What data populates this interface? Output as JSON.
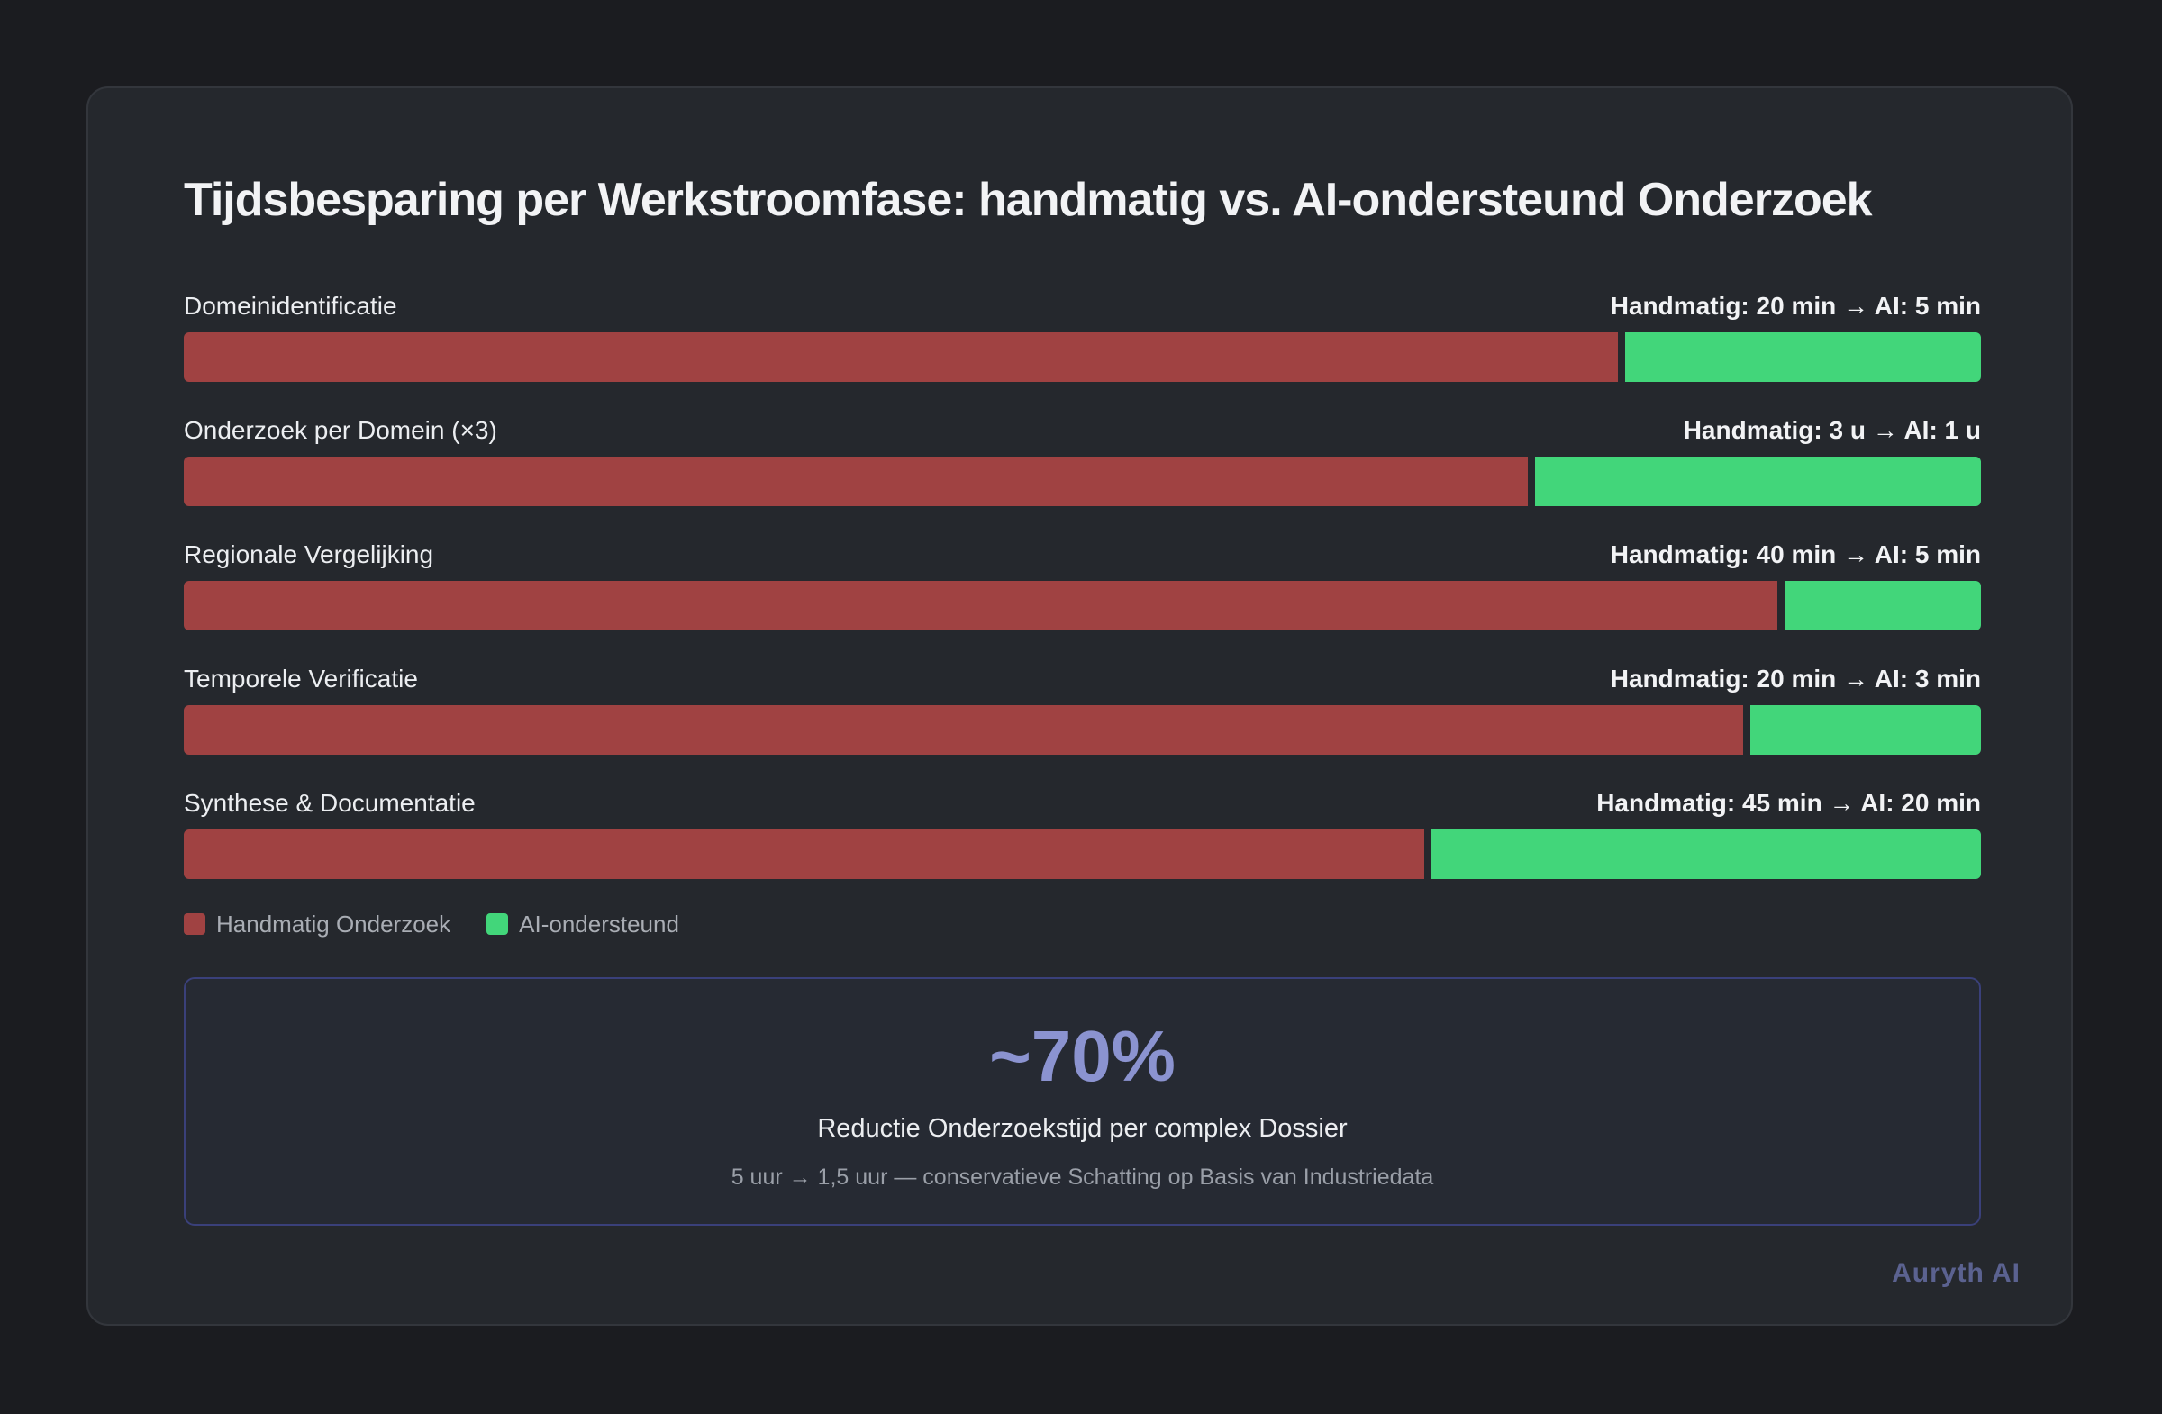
{
  "chart_data": {
    "type": "bar",
    "orientation": "horizontal-stacked-proportional",
    "title": "Tijdsbesparing per Werkstroomfase: handmatig vs. AI-ondersteund Onderzoek",
    "categories": [
      "Domeinidentificatie",
      "Onderzoek per Domein (×3)",
      "Regionale Vergelijking",
      "Temporele Verificatie",
      "Synthese & Documentatie"
    ],
    "series": [
      {
        "name": "Handmatig Onderzoek",
        "color": "#a04242",
        "values": [
          20,
          3,
          40,
          20,
          45
        ]
      },
      {
        "name": "AI-ondersteund",
        "color": "#42d67a",
        "values": [
          5,
          1,
          5,
          3,
          20
        ]
      }
    ],
    "units": [
      "min",
      "u",
      "min",
      "min",
      "min"
    ],
    "value_labels": [
      "Handmatig: 20 min → AI: 5 min",
      "Handmatig: 3 u → AI: 1 u",
      "Handmatig: 40 min → AI: 5 min",
      "Handmatig: 20 min → AI: 3 min",
      "Handmatig: 45 min → AI: 20 min"
    ],
    "legend_placement": "bottom-left",
    "grid": false
  },
  "summary": {
    "value": "~70%",
    "label": "Reductie Onderzoekstijd per complex Dossier",
    "note": "5 uur → 1,5 uur — conservatieve Schatting op Basis van Industriedata"
  },
  "brand": "Auryth AI"
}
